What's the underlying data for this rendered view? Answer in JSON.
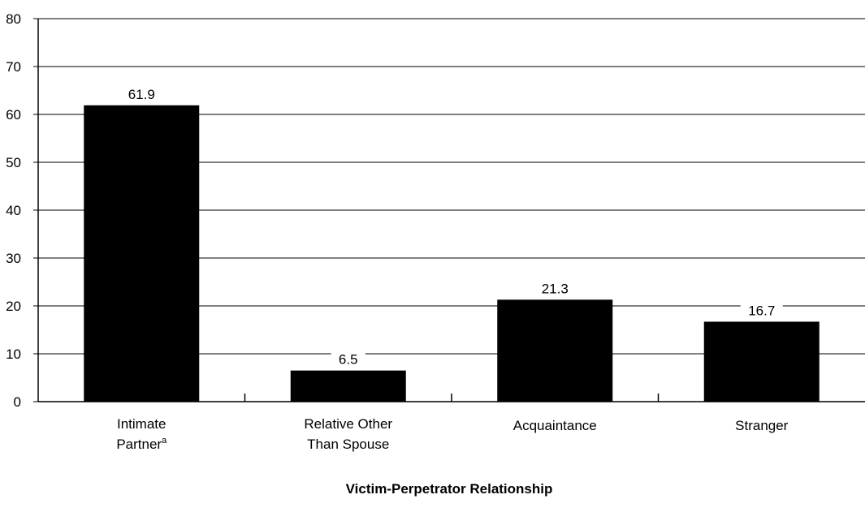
{
  "chart_data": {
    "type": "bar",
    "categories": [
      {
        "lines": [
          "Intimate",
          "Partner"
        ],
        "superscript": "a"
      },
      {
        "lines": [
          "Relative Other",
          "Than Spouse"
        ]
      },
      {
        "lines": [
          "Acquaintance"
        ]
      },
      {
        "lines": [
          "Stranger"
        ]
      }
    ],
    "values": [
      61.9,
      6.5,
      21.3,
      16.7
    ],
    "value_labels": [
      "61.9",
      "6.5",
      "21.3",
      "16.7"
    ],
    "ylim": [
      0,
      80
    ],
    "yticks": [
      0,
      10,
      20,
      30,
      40,
      50,
      60,
      70,
      80
    ],
    "xlabel": "Victim-Perpetrator Relationship",
    "ylabel": "",
    "title": "",
    "grid": true,
    "colors": {
      "bar": "#000000",
      "grid": "#000000",
      "background": "#ffffff"
    }
  }
}
